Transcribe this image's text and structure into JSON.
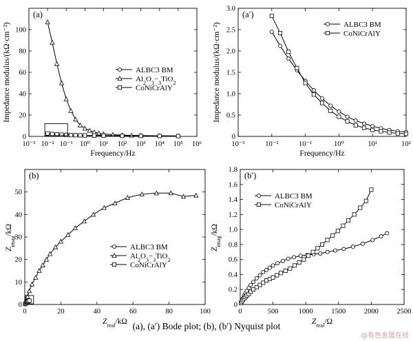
{
  "caption": "(a), (a′) Bode plot; (b), (b′) Nyquist plot",
  "watermark": "@有色金属在线",
  "chart_data": [
    {
      "id": "a",
      "panel_label": "(a)",
      "type": "line",
      "xlabel": "Frequency/Hz",
      "ylabel": "Impedance modulus/(kΩ·cm⁻²)",
      "xscale": "log",
      "xlim_exp": [
        -3,
        6
      ],
      "ylim": [
        0,
        120
      ],
      "xticks": [
        "10⁻³",
        "10⁻²",
        "10⁻¹",
        "10⁰",
        "10¹",
        "10²",
        "10³",
        "10⁴",
        "10⁵",
        "10⁶"
      ],
      "yticks": [
        "0",
        "20",
        "40",
        "60",
        "80",
        "100"
      ],
      "ytick_values": [
        0,
        20,
        40,
        60,
        80,
        100
      ],
      "legend_position": "center-right",
      "series": [
        {
          "name": "ALBC3 BM",
          "marker": "circle",
          "x": [
            0.01,
            0.0178,
            0.0316,
            0.0562,
            0.1,
            0.178,
            0.316,
            0.562,
            1,
            3.16,
            10,
            100,
            1000,
            10000,
            100000
          ],
          "y": [
            2.4,
            2.1,
            1.9,
            1.7,
            1.5,
            1.3,
            1.2,
            1.1,
            1.0,
            0.9,
            0.8,
            0.7,
            0.6,
            0.5,
            0.4
          ]
        },
        {
          "name": "Al2O3−3TiO2",
          "marker": "triangle",
          "x": [
            0.01,
            0.0178,
            0.0316,
            0.0562,
            0.1,
            0.178,
            0.316,
            0.562,
            1,
            1.78,
            3.16,
            5.62,
            10,
            31.6,
            100,
            316,
            1000,
            10000,
            100000
          ],
          "y": [
            107,
            88,
            68,
            50,
            35,
            24,
            16,
            10.5,
            7.5,
            5.5,
            4,
            3,
            2.3,
            1.6,
            1.2,
            1.0,
            0.8,
            0.6,
            0.5
          ]
        },
        {
          "name": "CoNiCrAlY",
          "marker": "square",
          "x": [
            0.01,
            0.0178,
            0.0316,
            0.0562,
            0.1,
            0.178,
            0.316,
            0.562,
            1,
            3.16,
            10,
            100,
            1000,
            10000,
            100000
          ],
          "y": [
            2.8,
            2.3,
            1.9,
            1.6,
            1.4,
            1.2,
            1.1,
            1.0,
            0.9,
            0.8,
            0.7,
            0.6,
            0.5,
            0.4,
            0.3
          ]
        }
      ]
    },
    {
      "id": "a2",
      "panel_label": "(a′)",
      "type": "line",
      "xlabel": "Frequency/Hz",
      "ylabel": "Impedance modulus/(kΩ·cm⁻²)",
      "xscale": "log",
      "xlim_exp": [
        -3,
        2
      ],
      "ylim": [
        0,
        3.0
      ],
      "xticks": [
        "10⁻³",
        "10⁻²",
        "10⁻¹",
        "10⁰",
        "10¹",
        "10²"
      ],
      "yticks": [
        "0",
        "0.5",
        "1.0",
        "1.5",
        "2.0",
        "2.5",
        "3.0"
      ],
      "ytick_values": [
        0,
        0.5,
        1,
        1.5,
        2,
        2.5,
        3
      ],
      "legend_position": "top-right",
      "series": [
        {
          "name": "ALBC3 BM",
          "marker": "circle",
          "x": [
            0.01,
            0.0178,
            0.0316,
            0.0562,
            0.1,
            0.178,
            0.316,
            0.562,
            1,
            1.78,
            3.16,
            5.62,
            10,
            17.8,
            31.6,
            56.2,
            100
          ],
          "y": [
            2.45,
            2.12,
            1.82,
            1.55,
            1.3,
            1.08,
            0.89,
            0.72,
            0.58,
            0.46,
            0.37,
            0.3,
            0.24,
            0.19,
            0.15,
            0.12,
            0.1
          ]
        },
        {
          "name": "CoNiCrAlY",
          "marker": "square",
          "x": [
            0.01,
            0.0178,
            0.0316,
            0.0562,
            0.1,
            0.178,
            0.316,
            0.562,
            1,
            1.78,
            3.16,
            5.62,
            10,
            17.8,
            31.6,
            56.2,
            100
          ],
          "y": [
            2.82,
            2.42,
            1.98,
            1.6,
            1.25,
            0.98,
            0.78,
            0.6,
            0.46,
            0.35,
            0.26,
            0.2,
            0.15,
            0.12,
            0.09,
            0.07,
            0.06
          ]
        }
      ]
    },
    {
      "id": "b",
      "panel_label": "(b)",
      "type": "line",
      "xlabel": "Zreal/kΩ",
      "ylabel": "Zimag/kΩ",
      "xlim": [
        0,
        100
      ],
      "ylim": [
        0,
        60
      ],
      "xticks": [
        "0",
        "20",
        "40",
        "60",
        "80",
        "100"
      ],
      "xtick_values": [
        0,
        20,
        40,
        60,
        80,
        100
      ],
      "yticks": [
        "0",
        "10",
        "20",
        "30",
        "40",
        "50"
      ],
      "ytick_values": [
        0,
        10,
        20,
        30,
        40,
        50
      ],
      "legend_position": "bottom-right",
      "series": [
        {
          "name": "ALBC3 BM",
          "marker": "circle",
          "x": [
            0.2,
            0.5,
            0.9,
            1.3,
            1.7,
            2.1,
            2.5
          ],
          "y": [
            0.1,
            0.4,
            0.8,
            1.2,
            1.5,
            1.7,
            1.8
          ]
        },
        {
          "name": "Al2O3−3TiO2",
          "marker": "triangle",
          "x": [
            0.5,
            1.5,
            2.5,
            4,
            6,
            8,
            10,
            12,
            14,
            17,
            20,
            24,
            28,
            33,
            38,
            44,
            50,
            57,
            65,
            73,
            81,
            88,
            95
          ],
          "y": [
            1.5,
            3.5,
            6,
            9,
            12,
            15,
            17.5,
            20,
            22.5,
            25.5,
            28,
            31,
            34,
            37,
            40,
            43,
            45,
            47.5,
            49,
            49.5,
            49.5,
            48,
            48.5
          ]
        },
        {
          "name": "CoNiCrAlY",
          "marker": "square",
          "x": [
            0.2,
            0.6,
            1.0,
            1.5,
            2.0,
            2.6
          ],
          "y": [
            0.2,
            0.5,
            0.9,
            1.2,
            1.5,
            1.7
          ]
        }
      ]
    },
    {
      "id": "b2",
      "panel_label": "(b′)",
      "type": "line",
      "xlabel": "Zreal/Ω",
      "ylabel": "Zimag/kΩ",
      "xlim": [
        0,
        2500
      ],
      "ylim": [
        0,
        1.8
      ],
      "xticks": [
        "0",
        "500",
        "1000",
        "1500",
        "2000",
        "2500"
      ],
      "xtick_values": [
        0,
        500,
        1000,
        1500,
        2000,
        2500
      ],
      "yticks": [
        "0",
        "0.2",
        "0.4",
        "0.6",
        "0.8",
        "1.0",
        "1.2",
        "1.4",
        "1.6",
        "1.8"
      ],
      "ytick_values": [
        0,
        0.2,
        0.4,
        0.6,
        0.8,
        1.0,
        1.2,
        1.4,
        1.6,
        1.8
      ],
      "legend_position": "top-left",
      "series": [
        {
          "name": "ALBC3 BM",
          "marker": "circle",
          "x": [
            10,
            25,
            40,
            60,
            80,
            100,
            130,
            160,
            200,
            250,
            300,
            350,
            400,
            450,
            500,
            570,
            650,
            730,
            820,
            920,
            1020,
            1120,
            1220,
            1330,
            1450,
            1580,
            1720,
            1870,
            2020,
            2150,
            2240
          ],
          "y": [
            0.02,
            0.05,
            0.08,
            0.12,
            0.15,
            0.18,
            0.22,
            0.26,
            0.3,
            0.35,
            0.39,
            0.43,
            0.46,
            0.49,
            0.52,
            0.55,
            0.58,
            0.61,
            0.63,
            0.65,
            0.66,
            0.67,
            0.68,
            0.7,
            0.72,
            0.74,
            0.77,
            0.81,
            0.86,
            0.91,
            0.95
          ]
        },
        {
          "name": "CoNiCrAlY",
          "marker": "square",
          "x": [
            10,
            25,
            40,
            60,
            80,
            100,
            130,
            160,
            200,
            250,
            300,
            350,
            400,
            450,
            500,
            560,
            620,
            690,
            760,
            830,
            900,
            970,
            1040,
            1110,
            1180,
            1250,
            1330,
            1410,
            1490,
            1570,
            1650,
            1740,
            1830,
            1920,
            2000
          ],
          "y": [
            0.02,
            0.04,
            0.06,
            0.08,
            0.1,
            0.12,
            0.14,
            0.17,
            0.2,
            0.23,
            0.26,
            0.29,
            0.32,
            0.34,
            0.36,
            0.39,
            0.42,
            0.45,
            0.48,
            0.52,
            0.56,
            0.6,
            0.65,
            0.7,
            0.75,
            0.8,
            0.86,
            0.92,
            0.98,
            1.05,
            1.12,
            1.2,
            1.29,
            1.38,
            1.53
          ]
        }
      ]
    }
  ]
}
